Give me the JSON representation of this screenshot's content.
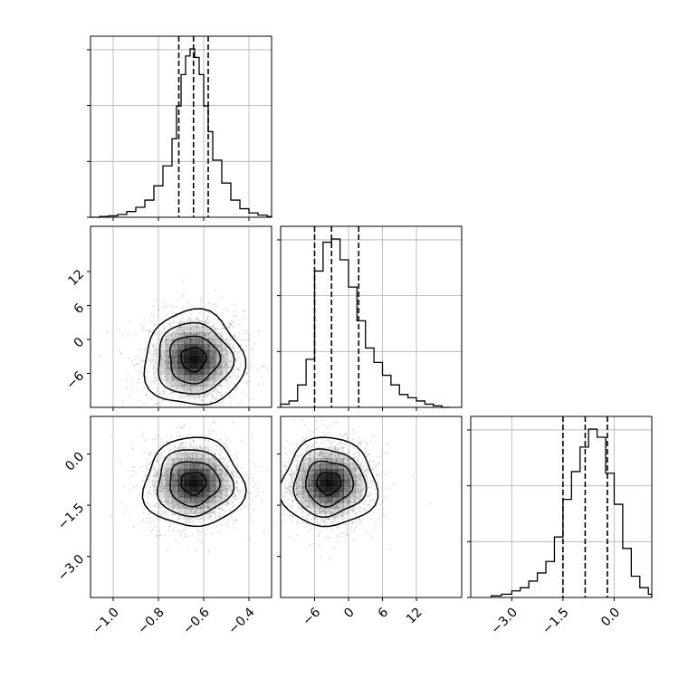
{
  "chart_data": {
    "type": "corner",
    "title": "",
    "parameters": [
      {
        "range": [
          -1.1,
          -0.3
        ],
        "ticks": [
          -1.0,
          -0.8,
          -0.6,
          -0.4
        ],
        "tick_labels": [
          "−1.0",
          "−0.8",
          "−0.6",
          "−0.4"
        ],
        "quantiles": [
          -0.71,
          -0.645,
          -0.58
        ],
        "hist": {
          "bin_edges": [
            -1.1,
            -1.06,
            -1.02,
            -0.98,
            -0.94,
            -0.9,
            -0.86,
            -0.82,
            -0.78,
            -0.74,
            -0.72,
            -0.7,
            -0.68,
            -0.66,
            -0.64,
            -0.62,
            -0.6,
            -0.58,
            -0.56,
            -0.52,
            -0.48,
            -0.44,
            -0.4,
            -0.36,
            -0.32,
            -0.3
          ],
          "counts": [
            0,
            0.5,
            1,
            2,
            4,
            7,
            12,
            22,
            36,
            55,
            78,
            100,
            113,
            118,
            112,
            100,
            78,
            60,
            40,
            24,
            12,
            6,
            3,
            1.5,
            0.5
          ]
        }
      },
      {
        "range": [
          -12,
          20
        ],
        "ticks": [
          -6,
          0,
          6,
          12
        ],
        "tick_labels": [
          "−6",
          "0",
          "6",
          "12"
        ],
        "quantiles": [
          -6,
          -3,
          1.8
        ],
        "hist": {
          "bin_edges": [
            -12,
            -10.5,
            -9,
            -7.5,
            -6,
            -4.5,
            -3,
            -1.5,
            0,
            1.5,
            3,
            4.5,
            6,
            7.5,
            9,
            10.5,
            12,
            13.5,
            15,
            16.5,
            18
          ],
          "counts": [
            2,
            4,
            14,
            30,
            85,
            103,
            105,
            92,
            75,
            54,
            37,
            28,
            20,
            14,
            8,
            6,
            4,
            2,
            1,
            0
          ]
        }
      },
      {
        "range": [
          -4.2,
          1.1
        ],
        "ticks": [
          -3.0,
          -1.5,
          0.0
        ],
        "tick_labels": [
          "−3.0",
          "−1.5",
          "0.0"
        ],
        "quantiles": [
          -1.5,
          -0.85,
          -0.2
        ],
        "hist": {
          "bin_edges": [
            -3.6,
            -3.3,
            -3.0,
            -2.75,
            -2.5,
            -2.25,
            -2.0,
            -1.75,
            -1.5,
            -1.25,
            -1.0,
            -0.75,
            -0.5,
            -0.25,
            0.0,
            0.25,
            0.5,
            0.75,
            1.0,
            1.1
          ],
          "counts": [
            1,
            2,
            4,
            6,
            10,
            15,
            22,
            37,
            60,
            77,
            92,
            103,
            98,
            76,
            57,
            30,
            13,
            6,
            2
          ]
        }
      }
    ],
    "hist_y_ticks": [
      0.0,
      0.33,
      0.66,
      0.99
    ],
    "scatter_2d": [
      {
        "x_param": 0,
        "y_param": 1,
        "center": [
          -0.645,
          -3.5
        ],
        "spread": [
          0.11,
          4.2
        ],
        "contour_levels": [
          0.5,
          1.0,
          1.5,
          2.0
        ]
      },
      {
        "x_param": 0,
        "y_param": 2,
        "center": [
          -0.645,
          -0.85
        ],
        "spread": [
          0.11,
          0.65
        ],
        "contour_levels": [
          0.5,
          1.0,
          1.5,
          2.0
        ]
      },
      {
        "x_param": 1,
        "y_param": 2,
        "center": [
          -3.5,
          -0.85
        ],
        "spread": [
          4.2,
          0.65
        ],
        "contour_levels": [
          0.5,
          1.0,
          1.5,
          2.0
        ]
      }
    ],
    "grid": true,
    "colors": {
      "points": "#7f7f7f",
      "density": "#000000",
      "lines": "#000000"
    }
  }
}
